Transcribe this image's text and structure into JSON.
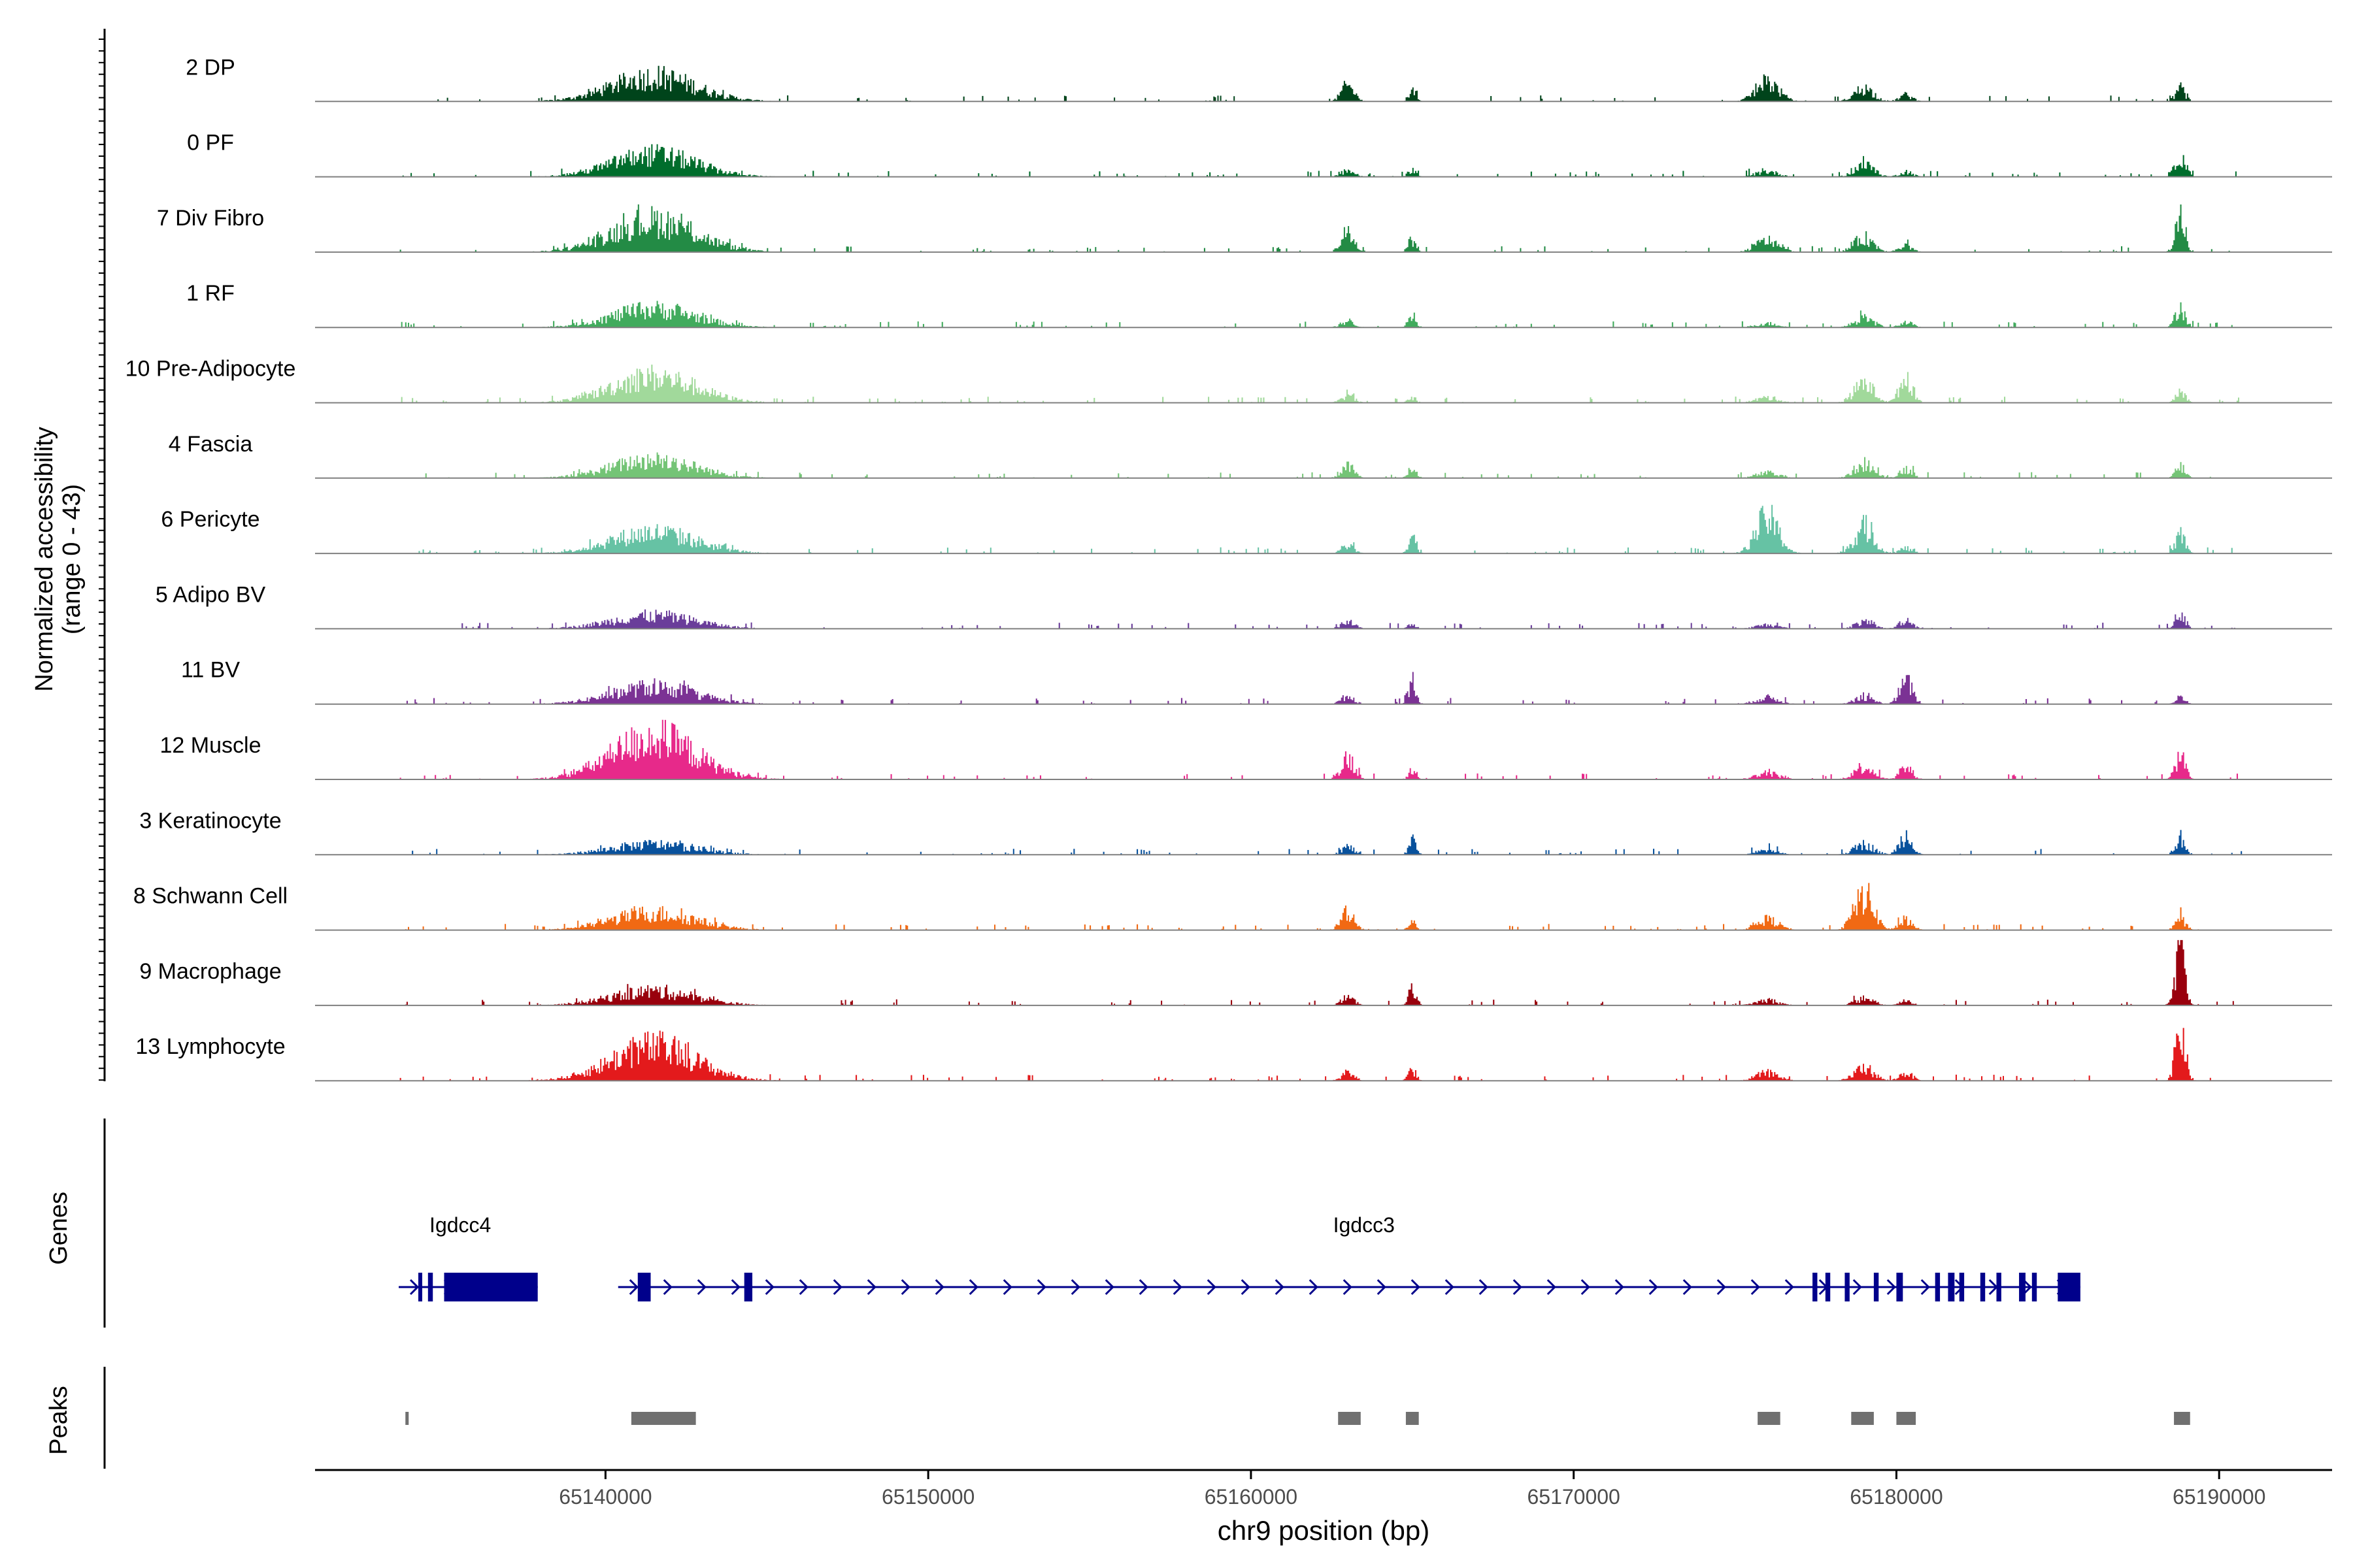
{
  "chart_data": {
    "type": "area",
    "title": "",
    "xlabel": "chr9 position (bp)",
    "ylabel_line1": "Normalized accessibility",
    "ylabel_line2": "(range 0 - 43)",
    "ylim": [
      0,
      43
    ],
    "xlim": [
      65131000,
      65193500
    ],
    "x_ticks": [
      65140000,
      65150000,
      65160000,
      65170000,
      65180000,
      65190000
    ],
    "x_tick_labels": [
      "65140000",
      "65150000",
      "65160000",
      "65170000",
      "65180000",
      "65190000"
    ],
    "peak_region_label": "Peaks",
    "gene_region_label": "Genes",
    "tracks": [
      {
        "name": "2 DP",
        "color": "#00441b",
        "peaks": [
          [
            65141500,
            19,
            1300
          ],
          [
            65163000,
            12,
            200
          ],
          [
            65165000,
            8,
            120
          ],
          [
            65176000,
            15,
            350
          ],
          [
            65179000,
            10,
            300
          ],
          [
            65180300,
            5,
            200
          ],
          [
            65188800,
            10,
            150
          ]
        ]
      },
      {
        "name": "0 PF",
        "color": "#006d2c",
        "peaks": [
          [
            65141500,
            17,
            1300
          ],
          [
            65163000,
            5,
            200
          ],
          [
            65165000,
            6,
            120
          ],
          [
            65176000,
            4,
            350
          ],
          [
            65179000,
            9,
            300
          ],
          [
            65180300,
            4,
            200
          ],
          [
            65188800,
            18,
            150
          ]
        ]
      },
      {
        "name": "7 Div Fibro",
        "color": "#238b45",
        "peaks": [
          [
            65141500,
            24,
            1300
          ],
          [
            65163000,
            15,
            200
          ],
          [
            65165000,
            10,
            120
          ],
          [
            65176000,
            9,
            350
          ],
          [
            65179000,
            11,
            300
          ],
          [
            65180300,
            5,
            200
          ],
          [
            65188800,
            27,
            150
          ]
        ]
      },
      {
        "name": "1 RF",
        "color": "#41ab5d",
        "peaks": [
          [
            65141500,
            14,
            1300
          ],
          [
            65163000,
            5,
            200
          ],
          [
            65165000,
            10,
            120
          ],
          [
            65176000,
            3,
            350
          ],
          [
            65179000,
            7,
            300
          ],
          [
            65180300,
            4,
            200
          ],
          [
            65188800,
            16,
            150
          ]
        ]
      },
      {
        "name": "10 Pre-Adipocyte",
        "color": "#a1d99b",
        "peaks": [
          [
            65141500,
            20,
            1300
          ],
          [
            65163000,
            6,
            200
          ],
          [
            65165000,
            4,
            120
          ],
          [
            65176000,
            4,
            350
          ],
          [
            65179000,
            15,
            300
          ],
          [
            65180300,
            19,
            200
          ],
          [
            65188800,
            8,
            150
          ]
        ]
      },
      {
        "name": "4 Fascia",
        "color": "#74c476",
        "peaks": [
          [
            65141500,
            14,
            1300
          ],
          [
            65163000,
            9,
            200
          ],
          [
            65165000,
            8,
            120
          ],
          [
            65176000,
            4,
            350
          ],
          [
            65179000,
            11,
            300
          ],
          [
            65180300,
            7,
            200
          ],
          [
            65188800,
            9,
            150
          ]
        ]
      },
      {
        "name": "6 Pericyte",
        "color": "#66c2a4",
        "peaks": [
          [
            65141500,
            16,
            1300
          ],
          [
            65163000,
            6,
            200
          ],
          [
            65165000,
            14,
            120
          ],
          [
            65176000,
            27,
            350
          ],
          [
            65179000,
            20,
            300
          ],
          [
            65180300,
            4,
            200
          ],
          [
            65188800,
            14,
            150
          ]
        ]
      },
      {
        "name": "5 Adipo BV",
        "color": "#6a3d9a",
        "peaks": [
          [
            65141500,
            10,
            1300
          ],
          [
            65163000,
            6,
            200
          ],
          [
            65165000,
            4,
            120
          ],
          [
            65176000,
            3,
            350
          ],
          [
            65179000,
            5,
            300
          ],
          [
            65180300,
            7,
            200
          ],
          [
            65188800,
            13,
            150
          ]
        ]
      },
      {
        "name": "11 BV",
        "color": "#7b3294",
        "peaks": [
          [
            65141500,
            13,
            1300
          ],
          [
            65163000,
            6,
            200
          ],
          [
            65165000,
            18,
            120
          ],
          [
            65176000,
            5,
            350
          ],
          [
            65179000,
            5,
            300
          ],
          [
            65180300,
            17,
            200
          ],
          [
            65188800,
            5,
            150
          ]
        ]
      },
      {
        "name": "12 Muscle",
        "color": "#e7298a",
        "peaks": [
          [
            65141500,
            32,
            1300
          ],
          [
            65163000,
            17,
            200
          ],
          [
            65165000,
            6,
            120
          ],
          [
            65176000,
            5,
            350
          ],
          [
            65179000,
            10,
            300
          ],
          [
            65180300,
            9,
            200
          ],
          [
            65188800,
            19,
            150
          ]
        ]
      },
      {
        "name": "3 Keratinocyte",
        "color": "#08519c",
        "peaks": [
          [
            65141500,
            8,
            1300
          ],
          [
            65163000,
            6,
            200
          ],
          [
            65165000,
            10,
            120
          ],
          [
            65176000,
            3,
            350
          ],
          [
            65179000,
            8,
            300
          ],
          [
            65180300,
            15,
            200
          ],
          [
            65188800,
            13,
            150
          ]
        ]
      },
      {
        "name": "8 Schwann Cell",
        "color": "#f16913",
        "peaks": [
          [
            65141500,
            13,
            1300
          ],
          [
            65163000,
            15,
            200
          ],
          [
            65165000,
            6,
            120
          ],
          [
            65176000,
            8,
            350
          ],
          [
            65179000,
            27,
            300
          ],
          [
            65180300,
            8,
            200
          ],
          [
            65188800,
            10,
            150
          ]
        ]
      },
      {
        "name": "9 Macrophage",
        "color": "#99000d",
        "peaks": [
          [
            65141500,
            11,
            1300
          ],
          [
            65163000,
            6,
            200
          ],
          [
            65165000,
            14,
            120
          ],
          [
            65176000,
            4,
            350
          ],
          [
            65179000,
            5,
            300
          ],
          [
            65180300,
            3,
            200
          ],
          [
            65188800,
            43,
            150
          ]
        ]
      },
      {
        "name": "13 Lymphocyte",
        "color": "#e31a1c",
        "peaks": [
          [
            65141500,
            26,
            1300
          ],
          [
            65163000,
            6,
            200
          ],
          [
            65165000,
            8,
            120
          ],
          [
            65176000,
            6,
            350
          ],
          [
            65179000,
            10,
            300
          ],
          [
            65180300,
            6,
            200
          ],
          [
            65188800,
            40,
            150
          ]
        ]
      }
    ],
    "genes": [
      {
        "name": "Igdcc4",
        "start": 65134200,
        "end": 65137900,
        "label_x": 65135500,
        "strand": "+",
        "exons": [
          [
            65134200,
            65134300
          ],
          [
            65134500,
            65134650
          ],
          [
            65135000,
            65137900
          ]
        ]
      },
      {
        "name": "Igdcc3",
        "start": 65141000,
        "end": 65185700,
        "label_x": 65163500,
        "strand": "+",
        "exons": [
          [
            65141000,
            65141400
          ],
          [
            65144300,
            65144550
          ],
          [
            65177400,
            65177550
          ],
          [
            65177800,
            65177950
          ],
          [
            65178400,
            65178550
          ],
          [
            65179300,
            65179450
          ],
          [
            65180000,
            65180200
          ],
          [
            65181200,
            65181350
          ],
          [
            65181600,
            65181800
          ],
          [
            65181950,
            65182100
          ],
          [
            65182600,
            65182750
          ],
          [
            65183100,
            65183250
          ],
          [
            65183800,
            65184000
          ],
          [
            65184200,
            65184350
          ],
          [
            65185000,
            65185700
          ]
        ]
      }
    ],
    "peak_regions": [
      [
        65133800,
        65133900
      ],
      [
        65140800,
        65142800
      ],
      [
        65162700,
        65163400
      ],
      [
        65164800,
        65165200
      ],
      [
        65175700,
        65176400
      ],
      [
        65178600,
        65179300
      ],
      [
        65180000,
        65180600
      ],
      [
        65188600,
        65189100
      ]
    ]
  }
}
